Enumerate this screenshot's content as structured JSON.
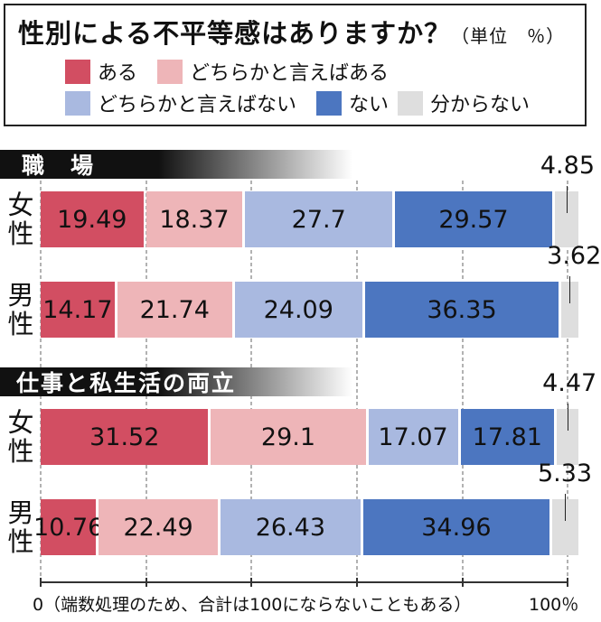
{
  "title": "性別による不平等感はありますか？",
  "unit": "（単位　％）",
  "colors": [
    "#d24e62",
    "#eeb5b8",
    "#a9b9e0",
    "#4c76c0",
    "#dedede"
  ],
  "legend": [
    "ある",
    "どちらかと言えばある",
    "どちらかと言えばない",
    "ない",
    "分からない"
  ],
  "footnote": "0（端数処理のため、合計は100にならないこともある）",
  "axis_end": "100％",
  "chart_data": {
    "type": "bar",
    "stacked": true,
    "orientation": "horizontal",
    "xlim": [
      0,
      100
    ],
    "series_names": [
      "ある",
      "どちらかと言えばある",
      "どちらかと言えばない",
      "ない",
      "分からない"
    ],
    "sections": [
      {
        "name": "職　場",
        "rows": [
          {
            "label": "女性",
            "values": [
              19.49,
              18.37,
              27.7,
              29.57,
              4.85
            ]
          },
          {
            "label": "男性",
            "values": [
              14.17,
              21.74,
              24.09,
              36.35,
              3.62
            ]
          }
        ]
      },
      {
        "name": "仕事と私生活の両立",
        "rows": [
          {
            "label": "女性",
            "values": [
              31.52,
              29.1,
              17.07,
              17.81,
              4.47
            ]
          },
          {
            "label": "男性",
            "values": [
              10.76,
              22.49,
              26.43,
              34.96,
              5.33
            ]
          }
        ]
      }
    ]
  }
}
